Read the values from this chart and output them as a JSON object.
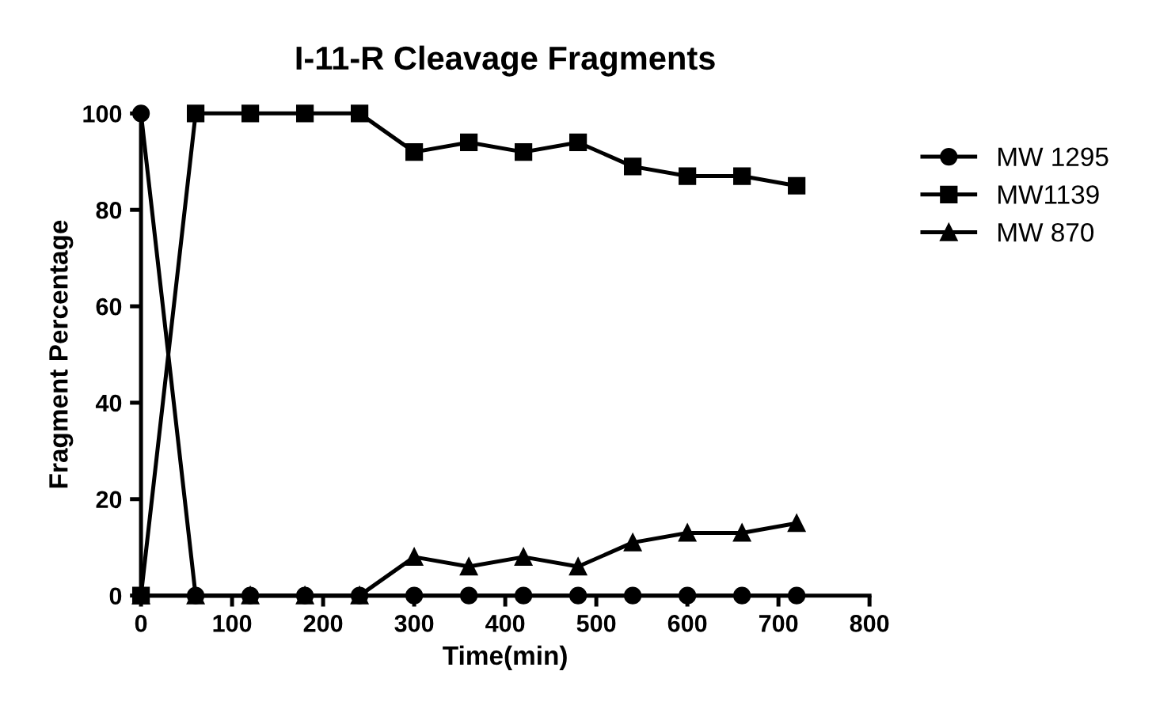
{
  "chart_data": {
    "type": "line",
    "title": "I-11-R Cleavage Fragments",
    "xlabel": "Time(min)",
    "ylabel": "Fragment Percentage",
    "x": [
      0,
      60,
      120,
      180,
      240,
      300,
      360,
      420,
      480,
      540,
      600,
      660,
      720
    ],
    "series": [
      {
        "name": "MW 1295",
        "color": "#000000",
        "marker": "circle",
        "values": [
          100,
          0,
          0,
          0,
          0,
          0,
          0,
          0,
          0,
          0,
          0,
          0,
          0
        ]
      },
      {
        "name": "MW1139",
        "color": "#000000",
        "marker": "square",
        "values": [
          0,
          100,
          100,
          100,
          100,
          92,
          94,
          92,
          94,
          89,
          87,
          87,
          85
        ]
      },
      {
        "name": "MW 870",
        "color": "#000000",
        "marker": "triangle",
        "values": [
          0,
          0,
          0,
          0,
          0,
          8,
          6,
          8,
          6,
          11,
          13,
          13,
          15
        ]
      }
    ],
    "xlim": [
      0,
      800
    ],
    "xticks": [
      0,
      100,
      200,
      300,
      400,
      500,
      600,
      700,
      800
    ],
    "ylim": [
      0,
      100
    ],
    "yticks": [
      0,
      20,
      40,
      60,
      80,
      100
    ],
    "grid": false,
    "legend": "right",
    "line_style": "solid"
  }
}
